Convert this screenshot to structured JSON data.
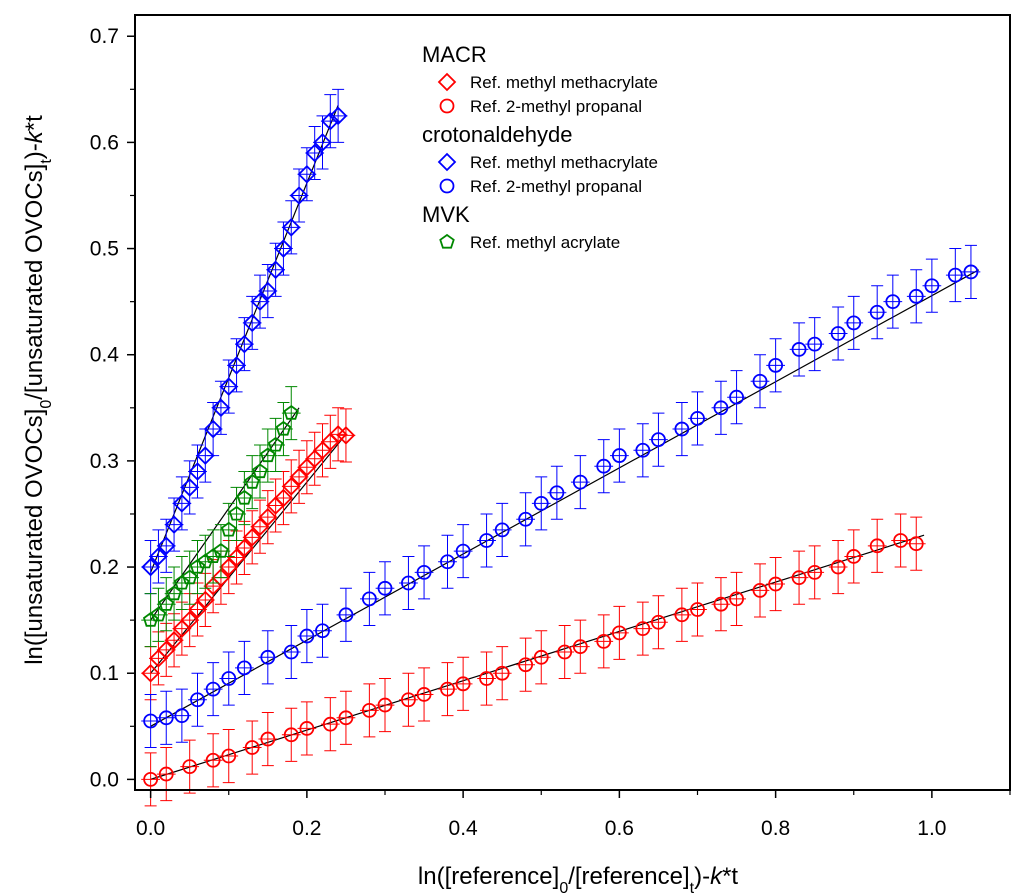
{
  "chart_data": {
    "type": "scatter",
    "xlabel": "ln([reference]0/[reference]t)-k*t",
    "ylabel": "ln([unsaturated OVOCs]0/[unsaturated OVOCs]t)-k*t",
    "xlim": [
      -0.02,
      1.1
    ],
    "ylim": [
      -0.01,
      0.72
    ],
    "x_ticks": [
      "0.0",
      "0.2",
      "0.4",
      "0.6",
      "0.8",
      "1.0"
    ],
    "y_ticks": [
      "0.0",
      "0.1",
      "0.2",
      "0.3",
      "0.4",
      "0.5",
      "0.6",
      "0.7"
    ],
    "grid": false,
    "legend_position": "top-center",
    "legend": [
      {
        "group": "MACR",
        "entries": [
          {
            "label": "Ref. methyl methacrylate",
            "marker": "diamond",
            "color": "#ff0000"
          },
          {
            "label": "Ref. 2-methyl propanal",
            "marker": "circle",
            "color": "#ff0000"
          }
        ]
      },
      {
        "group": "crotonaldehyde",
        "entries": [
          {
            "label": "Ref. methyl methacrylate",
            "marker": "diamond",
            "color": "#0000ff"
          },
          {
            "label": "Ref. 2-methyl propanal",
            "marker": "circle",
            "color": "#0000ff"
          }
        ]
      },
      {
        "group": "MVK",
        "entries": [
          {
            "label": "Ref. methyl acrylate",
            "marker": "pentagon",
            "color": "#008800"
          }
        ]
      }
    ],
    "series": [
      {
        "group": "MACR",
        "reference": "Ref. methyl methacrylate",
        "marker": "diamond",
        "color": "#ff0000",
        "x": [
          0.0,
          0.01,
          0.02,
          0.03,
          0.04,
          0.05,
          0.06,
          0.07,
          0.08,
          0.09,
          0.1,
          0.11,
          0.12,
          0.13,
          0.14,
          0.15,
          0.16,
          0.17,
          0.18,
          0.19,
          0.2,
          0.21,
          0.22,
          0.23,
          0.24,
          0.25
        ],
        "y": [
          0.1,
          0.114,
          0.122,
          0.131,
          0.142,
          0.15,
          0.16,
          0.169,
          0.182,
          0.19,
          0.2,
          0.209,
          0.218,
          0.228,
          0.238,
          0.247,
          0.258,
          0.265,
          0.276,
          0.285,
          0.294,
          0.302,
          0.31,
          0.318,
          0.325,
          0.324
        ],
        "fit": [
          [
            0.0,
            0.1
          ],
          [
            0.25,
            0.325
          ]
        ]
      },
      {
        "group": "MACR",
        "reference": "Ref. 2-methyl propanal",
        "marker": "circle",
        "color": "#ff0000",
        "x": [
          0.0,
          0.02,
          0.05,
          0.08,
          0.1,
          0.13,
          0.15,
          0.18,
          0.2,
          0.23,
          0.25,
          0.28,
          0.3,
          0.33,
          0.35,
          0.38,
          0.4,
          0.43,
          0.45,
          0.48,
          0.5,
          0.53,
          0.55,
          0.58,
          0.6,
          0.63,
          0.65,
          0.68,
          0.7,
          0.73,
          0.75,
          0.78,
          0.8,
          0.83,
          0.85,
          0.88,
          0.9,
          0.93,
          0.96,
          0.98
        ],
        "y": [
          0.0,
          0.005,
          0.012,
          0.018,
          0.022,
          0.03,
          0.038,
          0.042,
          0.048,
          0.052,
          0.058,
          0.065,
          0.07,
          0.075,
          0.08,
          0.085,
          0.09,
          0.095,
          0.1,
          0.108,
          0.115,
          0.12,
          0.125,
          0.13,
          0.138,
          0.142,
          0.148,
          0.155,
          0.16,
          0.165,
          0.17,
          0.178,
          0.184,
          0.19,
          0.195,
          0.2,
          0.21,
          0.22,
          0.225,
          0.222
        ],
        "fit": [
          [
            0.0,
            0.0
          ],
          [
            0.99,
            0.23
          ]
        ]
      },
      {
        "group": "crotonaldehyde",
        "reference": "Ref. methyl methacrylate",
        "marker": "diamond",
        "color": "#0000ff",
        "x": [
          0.0,
          0.01,
          0.02,
          0.03,
          0.04,
          0.05,
          0.06,
          0.07,
          0.08,
          0.09,
          0.1,
          0.11,
          0.12,
          0.13,
          0.14,
          0.15,
          0.16,
          0.17,
          0.18,
          0.19,
          0.2,
          0.21,
          0.22,
          0.23,
          0.24
        ],
        "y": [
          0.2,
          0.21,
          0.22,
          0.24,
          0.26,
          0.275,
          0.29,
          0.305,
          0.33,
          0.35,
          0.37,
          0.39,
          0.41,
          0.43,
          0.45,
          0.46,
          0.48,
          0.5,
          0.52,
          0.55,
          0.57,
          0.59,
          0.6,
          0.62,
          0.625
        ],
        "fit": [
          [
            0.0,
            0.195
          ],
          [
            0.24,
            0.635
          ]
        ]
      },
      {
        "group": "crotonaldehyde",
        "reference": "Ref. 2-methyl propanal",
        "marker": "circle",
        "color": "#0000ff",
        "x": [
          0.0,
          0.02,
          0.04,
          0.06,
          0.08,
          0.1,
          0.12,
          0.15,
          0.18,
          0.2,
          0.22,
          0.25,
          0.28,
          0.3,
          0.33,
          0.35,
          0.38,
          0.4,
          0.43,
          0.45,
          0.48,
          0.5,
          0.52,
          0.55,
          0.58,
          0.6,
          0.63,
          0.65,
          0.68,
          0.7,
          0.73,
          0.75,
          0.78,
          0.8,
          0.83,
          0.85,
          0.88,
          0.9,
          0.93,
          0.95,
          0.98,
          1.0,
          1.03,
          1.05
        ],
        "y": [
          0.055,
          0.058,
          0.06,
          0.075,
          0.085,
          0.095,
          0.105,
          0.115,
          0.12,
          0.135,
          0.14,
          0.155,
          0.17,
          0.18,
          0.185,
          0.195,
          0.205,
          0.215,
          0.225,
          0.235,
          0.245,
          0.26,
          0.27,
          0.28,
          0.295,
          0.305,
          0.31,
          0.32,
          0.33,
          0.34,
          0.35,
          0.36,
          0.375,
          0.39,
          0.405,
          0.41,
          0.42,
          0.43,
          0.44,
          0.45,
          0.455,
          0.465,
          0.475,
          0.478
        ],
        "fit": [
          [
            0.0,
            0.05
          ],
          [
            1.06,
            0.48
          ]
        ]
      },
      {
        "group": "MVK",
        "reference": "Ref. methyl acrylate",
        "marker": "pentagon",
        "color": "#008800",
        "x": [
          0.0,
          0.01,
          0.02,
          0.03,
          0.04,
          0.05,
          0.06,
          0.07,
          0.08,
          0.09,
          0.1,
          0.11,
          0.12,
          0.13,
          0.14,
          0.15,
          0.16,
          0.17,
          0.18
        ],
        "y": [
          0.15,
          0.155,
          0.165,
          0.175,
          0.185,
          0.19,
          0.2,
          0.205,
          0.21,
          0.215,
          0.235,
          0.25,
          0.265,
          0.28,
          0.29,
          0.305,
          0.315,
          0.33,
          0.345
        ],
        "fit": [
          [
            0.0,
            0.15
          ],
          [
            0.19,
            0.35
          ]
        ]
      }
    ]
  }
}
